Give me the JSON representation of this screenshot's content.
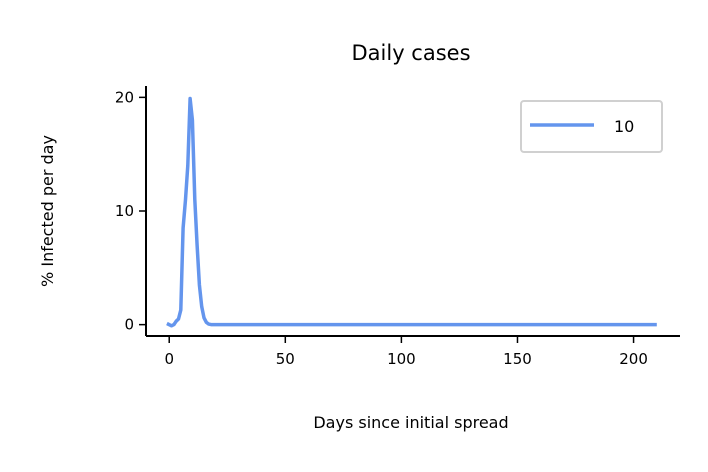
{
  "chart_data": {
    "type": "line",
    "title": "Daily cases",
    "xlabel": "Days since initial spread",
    "ylabel": "% Infected per day",
    "xlim": [
      -10,
      220
    ],
    "ylim": [
      -1,
      21
    ],
    "xticks": [
      0,
      50,
      100,
      150,
      200
    ],
    "yticks": [
      0,
      10,
      20
    ],
    "grid": false,
    "legend": {
      "placement": "top-right"
    },
    "series": [
      {
        "name": "10",
        "color": "#6495ed",
        "x": [
          -1,
          1,
          2,
          3,
          4,
          5,
          6,
          7,
          8,
          9,
          10,
          11,
          12,
          13,
          14,
          15,
          16,
          17,
          18,
          20,
          30,
          50,
          100,
          150,
          210
        ],
        "y": [
          0.1,
          -0.1,
          0.0,
          0.3,
          0.5,
          1.3,
          8.5,
          11.0,
          14.0,
          19.9,
          18.0,
          11.0,
          7.0,
          3.5,
          1.6,
          0.6,
          0.2,
          0.05,
          0.0,
          0.0,
          0.0,
          0.0,
          0.0,
          0.0,
          0.0
        ]
      }
    ]
  }
}
